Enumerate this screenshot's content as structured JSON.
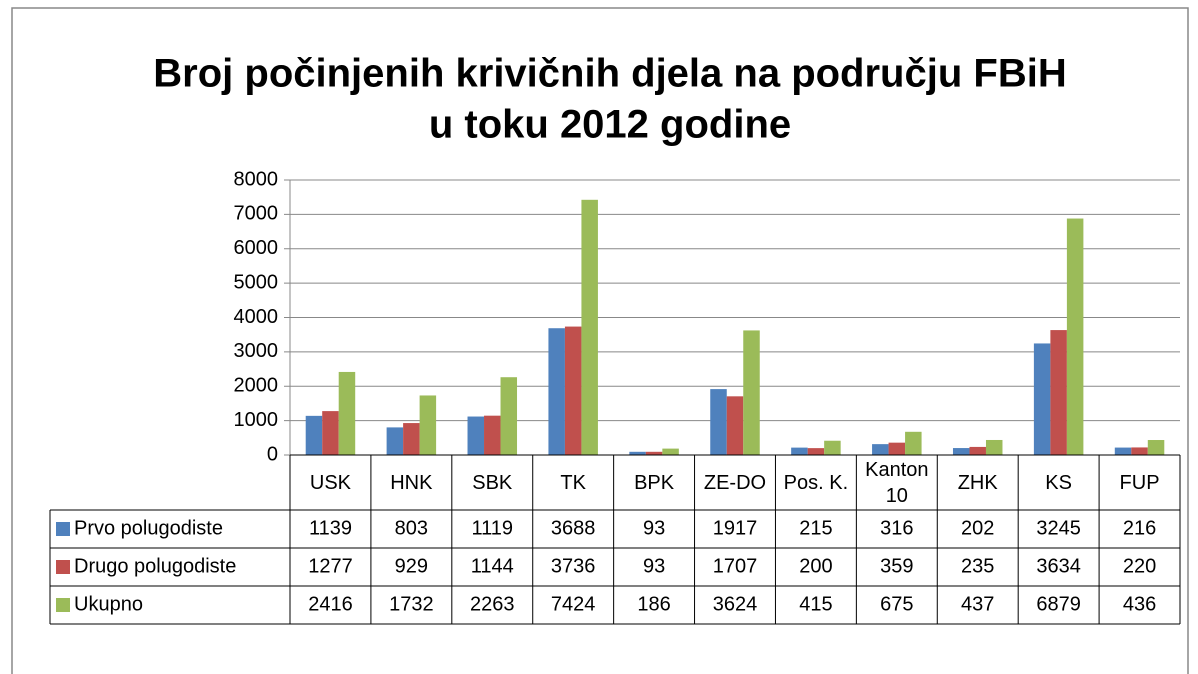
{
  "chart_data": {
    "type": "bar",
    "title": [
      "Broj počinjenih krivičnih djela na području FBiH",
      "u toku 2012 godine"
    ],
    "categories": [
      "USK",
      "HNK",
      "SBK",
      "TK",
      "BPK",
      "ZE-DO",
      "Pos. K.",
      "Kanton 10",
      "ZHK",
      "KS",
      "FUP"
    ],
    "series": [
      {
        "name": "Prvo polugodiste",
        "color": "#4f81bd",
        "values": [
          1139,
          803,
          1119,
          3688,
          93,
          1917,
          215,
          316,
          202,
          3245,
          216
        ]
      },
      {
        "name": "Drugo polugodiste",
        "color": "#c0504d",
        "values": [
          1277,
          929,
          1144,
          3736,
          93,
          1707,
          200,
          359,
          235,
          3634,
          220
        ]
      },
      {
        "name": "Ukupno",
        "color": "#9bbb59",
        "values": [
          2416,
          1732,
          2263,
          7424,
          186,
          3624,
          415,
          675,
          437,
          6879,
          436
        ]
      }
    ],
    "ylim": [
      0,
      8000
    ],
    "yticks": [
      0,
      1000,
      2000,
      3000,
      4000,
      5000,
      6000,
      7000,
      8000
    ],
    "grid": true,
    "data_table": true
  }
}
